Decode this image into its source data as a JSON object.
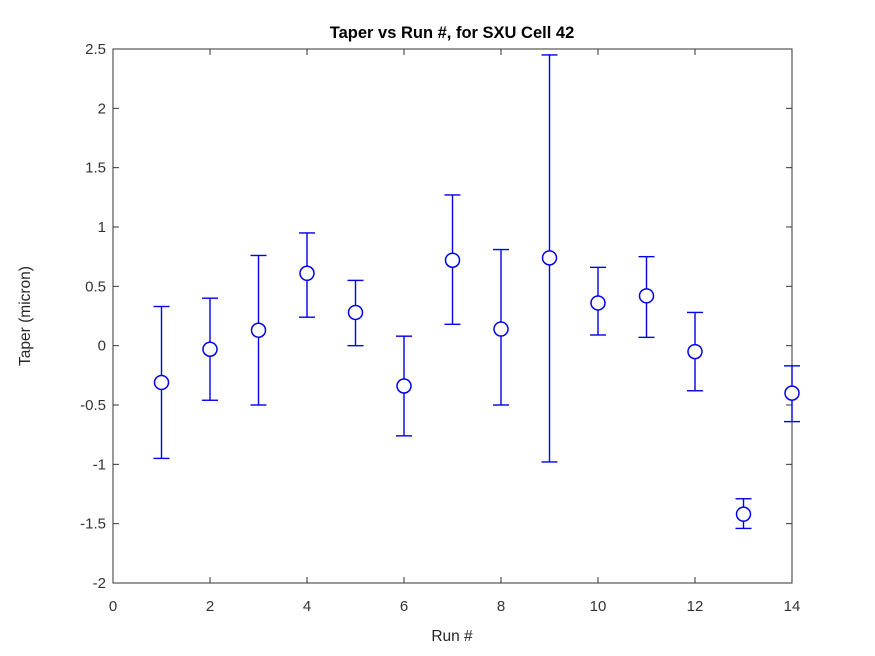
{
  "chart_data": {
    "type": "scatter",
    "variant": "errorbar",
    "title": "Taper vs Run #, for SXU Cell 42",
    "xlabel": "Run #",
    "ylabel": "Taper (micron)",
    "xlim": [
      0,
      14
    ],
    "ylim": [
      -2,
      2.5
    ],
    "x_ticks": [
      0,
      2,
      4,
      6,
      8,
      10,
      12,
      14
    ],
    "y_ticks": [
      -2,
      -1.5,
      -1,
      -0.5,
      0,
      0.5,
      1,
      1.5,
      2,
      2.5
    ],
    "grid": false,
    "legend": null,
    "marker": "open-circle",
    "series_color": "#0000EE",
    "axis_color": "#333333",
    "background": "#FFFFFF",
    "x": [
      1,
      2,
      3,
      4,
      5,
      6,
      7,
      8,
      9,
      10,
      11,
      12,
      13,
      14
    ],
    "y": [
      -0.31,
      -0.03,
      0.13,
      0.61,
      0.28,
      -0.34,
      0.72,
      0.14,
      0.74,
      0.36,
      0.42,
      -0.05,
      -1.42,
      -0.4
    ],
    "y_upper": [
      0.33,
      0.4,
      0.76,
      0.95,
      0.55,
      0.08,
      1.27,
      0.81,
      2.45,
      0.66,
      0.75,
      0.28,
      -1.29,
      -0.17
    ],
    "y_lower": [
      -0.95,
      -0.46,
      -0.5,
      0.24,
      0.0,
      -0.76,
      0.18,
      -0.5,
      -0.98,
      0.09,
      0.07,
      -0.38,
      -1.54,
      -0.64
    ]
  }
}
